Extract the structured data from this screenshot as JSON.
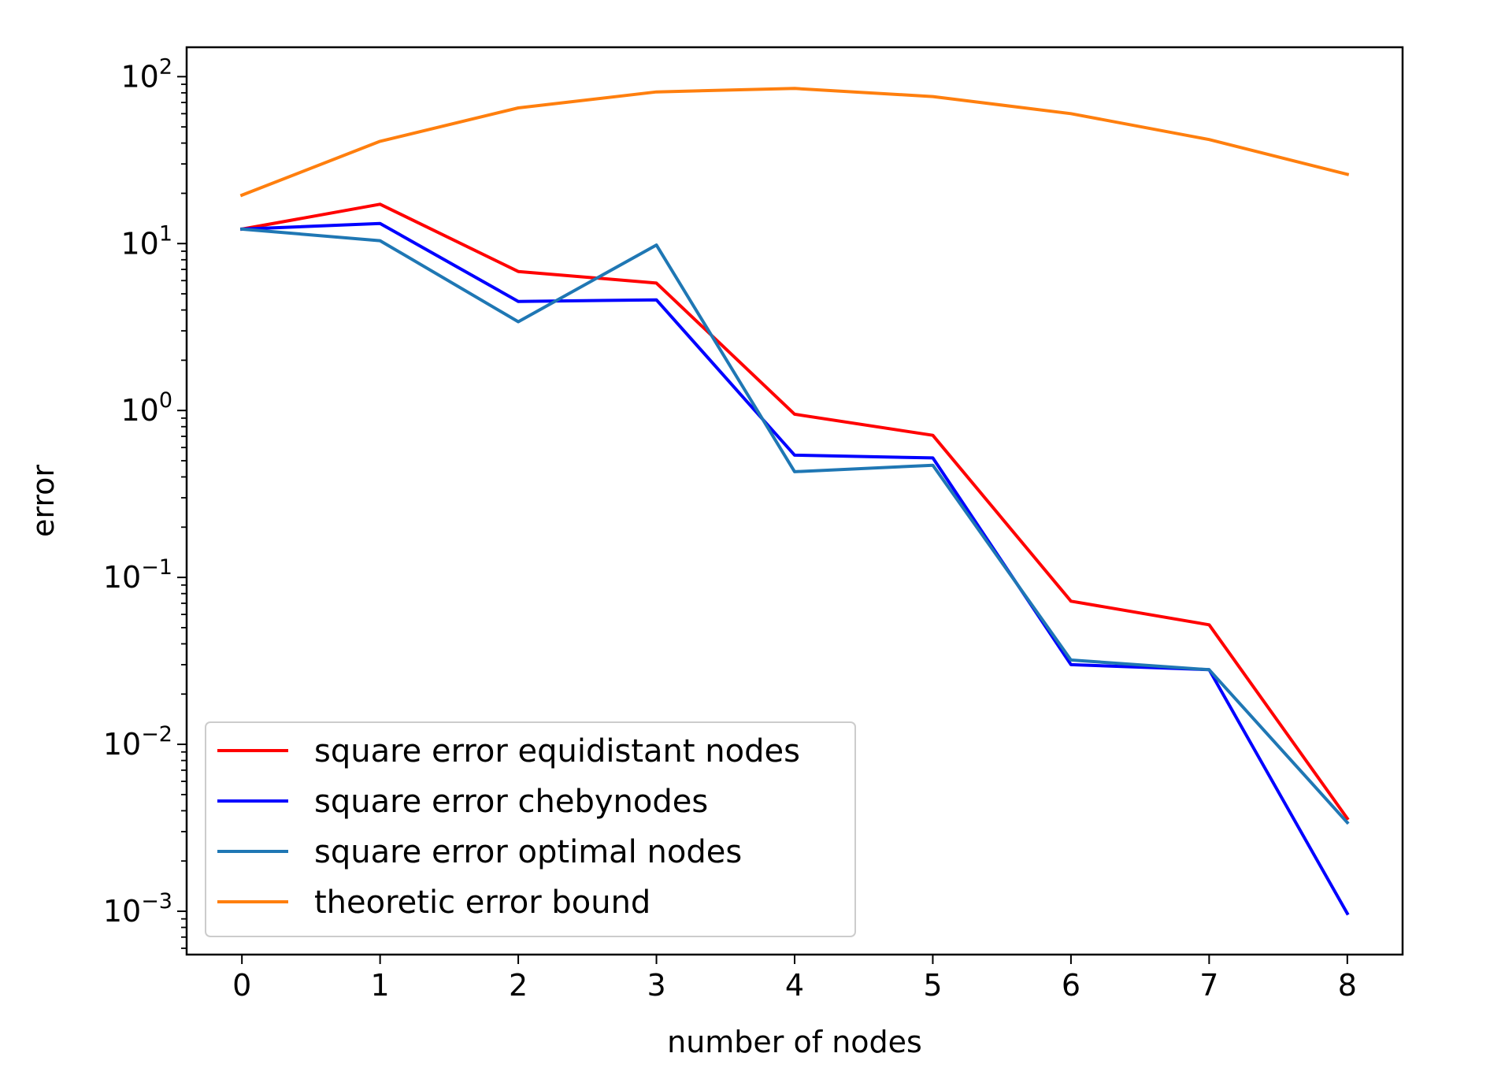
{
  "chart_data": {
    "type": "line",
    "xlabel": "number of nodes",
    "ylabel": "error",
    "x": [
      0,
      1,
      2,
      3,
      4,
      5,
      6,
      7,
      8
    ],
    "xticks": [
      "0",
      "1",
      "2",
      "3",
      "4",
      "5",
      "6",
      "7",
      "8"
    ],
    "xlim": [
      -0.4,
      8.4
    ],
    "yscale": "log",
    "ylim": [
      0.00055,
      150
    ],
    "yticks": [
      {
        "value": 0.001,
        "base": "10",
        "exp": "−3"
      },
      {
        "value": 0.01,
        "base": "10",
        "exp": "−2"
      },
      {
        "value": 0.1,
        "base": "10",
        "exp": "−1"
      },
      {
        "value": 1,
        "base": "10",
        "exp": "0"
      },
      {
        "value": 10,
        "base": "10",
        "exp": "1"
      },
      {
        "value": 100,
        "base": "10",
        "exp": "2"
      }
    ],
    "grid": false,
    "legend_position": "lower-left",
    "series": [
      {
        "name": "square error equidistant nodes",
        "color": "#ff0000",
        "values": [
          12.2,
          17.2,
          6.8,
          5.8,
          0.95,
          0.71,
          0.072,
          0.052,
          0.0036
        ]
      },
      {
        "name": "square error chebynodes",
        "color": "#0000ff",
        "values": [
          12.2,
          13.2,
          4.5,
          4.6,
          0.54,
          0.52,
          0.03,
          0.028,
          0.00097
        ]
      },
      {
        "name": "square error optimal nodes",
        "color": "#1f77b4",
        "values": [
          12.2,
          10.4,
          3.4,
          9.8,
          0.43,
          0.47,
          0.032,
          0.028,
          0.0034
        ]
      },
      {
        "name": "theoretic error bound",
        "color": "#ff7f0e",
        "values": [
          19.5,
          41.0,
          65.0,
          81.0,
          85.0,
          76.0,
          60.0,
          42.0,
          26.0
        ]
      }
    ]
  }
}
